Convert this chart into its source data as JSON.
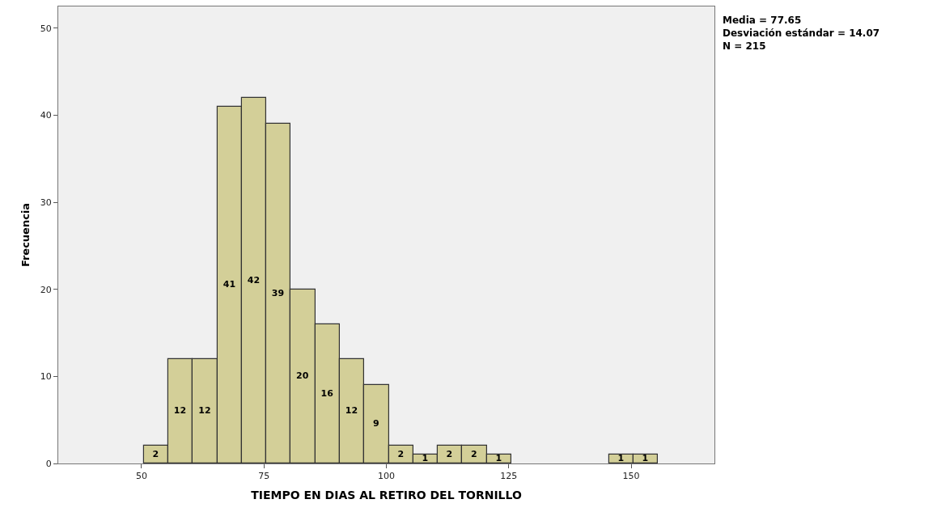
{
  "chart_data": {
    "type": "histogram",
    "xlabel": "TIEMPO EN DIAS AL RETIRO DEL TORNILLO",
    "ylabel": "Frecuencia",
    "bins": [
      50.5,
      55.5,
      60.5,
      65.5,
      70.5,
      75.5,
      80.5,
      85.5,
      90.5,
      95.5,
      100.5,
      105.5,
      110.5,
      115.5,
      120.5,
      125.5,
      130.5,
      135.5,
      140.5,
      145.5,
      150.5,
      155.5
    ],
    "values": [
      2,
      12,
      12,
      41,
      42,
      39,
      20,
      16,
      12,
      9,
      2,
      1,
      2,
      2,
      1,
      0,
      0,
      0,
      0,
      1,
      1
    ],
    "value_labels": [
      "2",
      "12",
      "12",
      "41",
      "42",
      "39",
      "20",
      "16",
      "12",
      "9",
      "2",
      "1",
      "2",
      "2",
      "1",
      null,
      null,
      null,
      null,
      "1",
      "1"
    ],
    "color": "#d3cf98",
    "xlim": [
      33,
      167
    ],
    "xticks": [
      50,
      75,
      100,
      125,
      150
    ],
    "ylim": [
      0,
      52.5
    ],
    "yticks": [
      0,
      10,
      20,
      30,
      40,
      50
    ],
    "grid": false,
    "annotations": [
      "Media = 77.65",
      "Desviación estándar = 14.07",
      "N = 215"
    ]
  }
}
